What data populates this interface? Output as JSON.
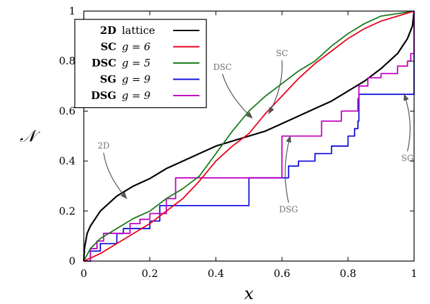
{
  "chart_data": {
    "type": "line",
    "xlabel": "x",
    "ylabel": "𝒩",
    "xlim": [
      0,
      1
    ],
    "ylim": [
      0,
      1
    ],
    "xticks": [
      "0",
      "0.2",
      "0.4",
      "0.6",
      "0.8",
      "1"
    ],
    "yticks": [
      "0",
      "0.2",
      "0.4",
      "0.6",
      "0.8",
      "1"
    ],
    "grid": false,
    "legend_position": "top-left",
    "series": [
      {
        "name": "2D lattice",
        "legend_label": "2D",
        "legend_param": "lattice",
        "color": "#000000",
        "step": false,
        "points": [
          [
            0,
            0
          ],
          [
            0.002,
            0.05
          ],
          [
            0.01,
            0.11
          ],
          [
            0.02,
            0.14
          ],
          [
            0.05,
            0.2
          ],
          [
            0.1,
            0.26
          ],
          [
            0.15,
            0.3
          ],
          [
            0.2,
            0.33
          ],
          [
            0.25,
            0.37
          ],
          [
            0.3,
            0.4
          ],
          [
            0.35,
            0.43
          ],
          [
            0.4,
            0.46
          ],
          [
            0.45,
            0.48
          ],
          [
            0.5,
            0.5
          ],
          [
            0.55,
            0.52
          ],
          [
            0.6,
            0.55
          ],
          [
            0.65,
            0.58
          ],
          [
            0.7,
            0.61
          ],
          [
            0.75,
            0.64
          ],
          [
            0.8,
            0.68
          ],
          [
            0.85,
            0.72
          ],
          [
            0.9,
            0.77
          ],
          [
            0.95,
            0.83
          ],
          [
            0.98,
            0.89
          ],
          [
            0.995,
            0.94
          ],
          [
            1,
            1
          ]
        ]
      },
      {
        "name": "SC g=6",
        "legend_label": "SC",
        "legend_param": "g = 6",
        "color": "#e8001c",
        "step": false,
        "points": [
          [
            0,
            0
          ],
          [
            0.05,
            0.03
          ],
          [
            0.1,
            0.07
          ],
          [
            0.15,
            0.11
          ],
          [
            0.2,
            0.15
          ],
          [
            0.25,
            0.2
          ],
          [
            0.3,
            0.25
          ],
          [
            0.35,
            0.32
          ],
          [
            0.4,
            0.4
          ],
          [
            0.45,
            0.46
          ],
          [
            0.5,
            0.51
          ],
          [
            0.55,
            0.59
          ],
          [
            0.6,
            0.66
          ],
          [
            0.65,
            0.73
          ],
          [
            0.7,
            0.79
          ],
          [
            0.75,
            0.84
          ],
          [
            0.8,
            0.89
          ],
          [
            0.85,
            0.93
          ],
          [
            0.9,
            0.96
          ],
          [
            0.95,
            0.98
          ],
          [
            1,
            1
          ]
        ]
      },
      {
        "name": "DSC g=5",
        "legend_label": "DSC",
        "legend_param": "g = 5",
        "color": "#1a7a1a",
        "step": false,
        "points": [
          [
            0,
            0
          ],
          [
            0.02,
            0.05
          ],
          [
            0.05,
            0.09
          ],
          [
            0.1,
            0.13
          ],
          [
            0.15,
            0.17
          ],
          [
            0.2,
            0.2
          ],
          [
            0.25,
            0.25
          ],
          [
            0.3,
            0.29
          ],
          [
            0.35,
            0.34
          ],
          [
            0.4,
            0.43
          ],
          [
            0.45,
            0.52
          ],
          [
            0.5,
            0.6
          ],
          [
            0.55,
            0.66
          ],
          [
            0.6,
            0.71
          ],
          [
            0.65,
            0.76
          ],
          [
            0.7,
            0.8
          ],
          [
            0.75,
            0.86
          ],
          [
            0.8,
            0.91
          ],
          [
            0.85,
            0.95
          ],
          [
            0.9,
            0.98
          ],
          [
            0.95,
            0.99
          ],
          [
            1,
            1
          ]
        ]
      },
      {
        "name": "SG g=9",
        "legend_label": "SG",
        "legend_param": "g = 9",
        "color": "#1010dd",
        "step": true,
        "points": [
          [
            0,
            0
          ],
          [
            0.02,
            0.04
          ],
          [
            0.05,
            0.07
          ],
          [
            0.1,
            0.11
          ],
          [
            0.12,
            0.13
          ],
          [
            0.2,
            0.16
          ],
          [
            0.23,
            0.222
          ],
          [
            0.5,
            0.222
          ],
          [
            0.5,
            0.333
          ],
          [
            0.6,
            0.333
          ],
          [
            0.62,
            0.38
          ],
          [
            0.65,
            0.4
          ],
          [
            0.7,
            0.43
          ],
          [
            0.75,
            0.46
          ],
          [
            0.8,
            0.5
          ],
          [
            0.82,
            0.53
          ],
          [
            0.83,
            0.56
          ],
          [
            0.833,
            0.667
          ],
          [
            0.99,
            0.667
          ],
          [
            1,
            1
          ]
        ]
      },
      {
        "name": "DSG g=9",
        "legend_label": "DSG",
        "legend_param": "g = 9",
        "color": "#c000c0",
        "step": true,
        "points": [
          [
            0,
            0
          ],
          [
            0.02,
            0.05
          ],
          [
            0.04,
            0.08
          ],
          [
            0.06,
            0.111
          ],
          [
            0.13,
            0.111
          ],
          [
            0.14,
            0.15
          ],
          [
            0.17,
            0.167
          ],
          [
            0.2,
            0.19
          ],
          [
            0.25,
            0.25
          ],
          [
            0.278,
            0.333
          ],
          [
            0.6,
            0.333
          ],
          [
            0.6,
            0.5
          ],
          [
            0.72,
            0.5
          ],
          [
            0.72,
            0.56
          ],
          [
            0.78,
            0.6
          ],
          [
            0.83,
            0.65
          ],
          [
            0.833,
            0.7
          ],
          [
            0.86,
            0.733
          ],
          [
            0.9,
            0.75
          ],
          [
            0.95,
            0.78
          ],
          [
            0.98,
            0.8
          ],
          [
            0.99,
            0.83
          ],
          [
            1,
            0.85
          ],
          [
            1,
            1
          ]
        ]
      }
    ],
    "annotations": [
      {
        "text": "2D",
        "label_x": 0.06,
        "label_y": 0.45,
        "arrow_to": [
          0.13,
          0.25
        ]
      },
      {
        "text": "DSC",
        "label_x": 0.42,
        "label_y": 0.765,
        "arrow_to": [
          0.51,
          0.572
        ]
      },
      {
        "text": "SC",
        "label_x": 0.6,
        "label_y": 0.82,
        "arrow_to": [
          0.56,
          0.59
        ]
      },
      {
        "text": "DSG",
        "label_x": 0.62,
        "label_y": 0.195,
        "arrow_to": [
          0.625,
          0.5
        ]
      },
      {
        "text": "SG",
        "label_x": 0.98,
        "label_y": 0.4,
        "arrow_to": [
          0.97,
          0.667
        ]
      }
    ]
  }
}
